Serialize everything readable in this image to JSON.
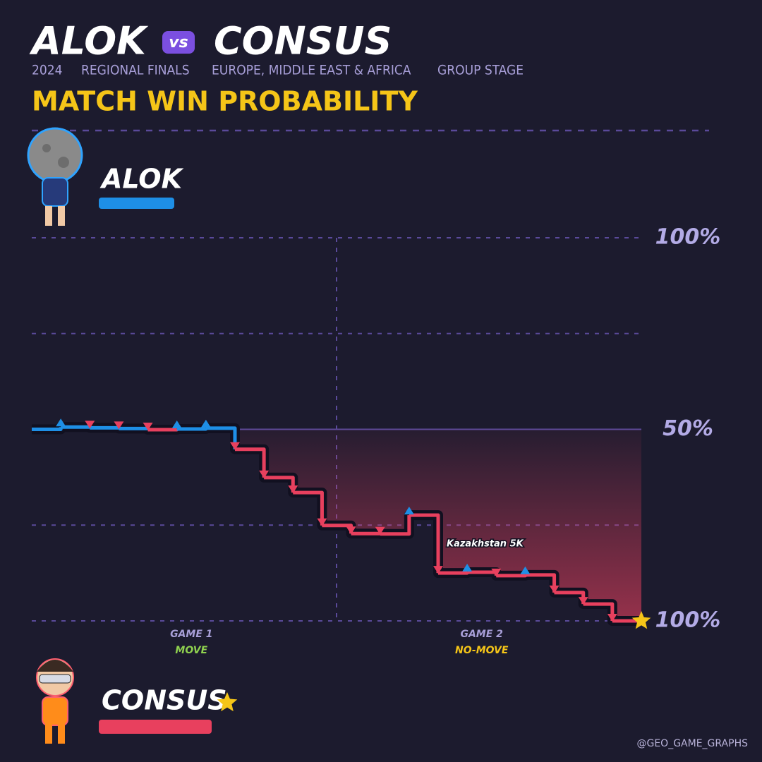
{
  "chart_data": {
    "type": "step",
    "title_left": "ALOK",
    "title_vs": "vs",
    "title_right": "CONSUS",
    "subtitle": [
      "2024",
      "REGIONAL FINALS",
      "EUROPE, MIDDLE EAST & AFRICA",
      "GROUP STAGE"
    ],
    "heading": "MATCH WIN PROBABILITY",
    "players": [
      {
        "name": "ALOK",
        "color": "#1e8fe6"
      },
      {
        "name": "CONSUS",
        "color": "#e8405e",
        "winner": true
      }
    ],
    "x": [
      0,
      1,
      2,
      3,
      4,
      5,
      6,
      7,
      8,
      9,
      10,
      11,
      12,
      13,
      14,
      15,
      16,
      17,
      18,
      19,
      20,
      21
    ],
    "values": [
      50,
      50.6,
      50.4,
      50.2,
      49.9,
      50.1,
      50.3,
      44.8,
      37.4,
      33.5,
      24.9,
      22.8,
      22.7,
      27.6,
      12.5,
      12.7,
      11.8,
      12,
      7.4,
      4.4,
      0,
      0
    ],
    "xlim": [
      0,
      21
    ],
    "ylim": [
      0,
      100
    ],
    "yticks": [
      {
        "value": 100,
        "label": "100%"
      },
      {
        "value": 50,
        "label": "50%"
      },
      {
        "value": 0,
        "label": "100%"
      }
    ],
    "minor_yticks": [
      75,
      25
    ],
    "games": [
      {
        "name": "GAME 1",
        "mode": "MOVE",
        "mode_color": "#8fd14f",
        "rounds": [
          1,
          10
        ]
      },
      {
        "name": "GAME 2",
        "mode": "NO-MOVE",
        "mode_color": "#f5c518",
        "rounds": [
          11,
          20
        ]
      }
    ],
    "annotations": [
      {
        "text": "Kazakhstan 5K",
        "x": 14
      }
    ],
    "credit": "@GEO_GAME_GRAPHS"
  }
}
